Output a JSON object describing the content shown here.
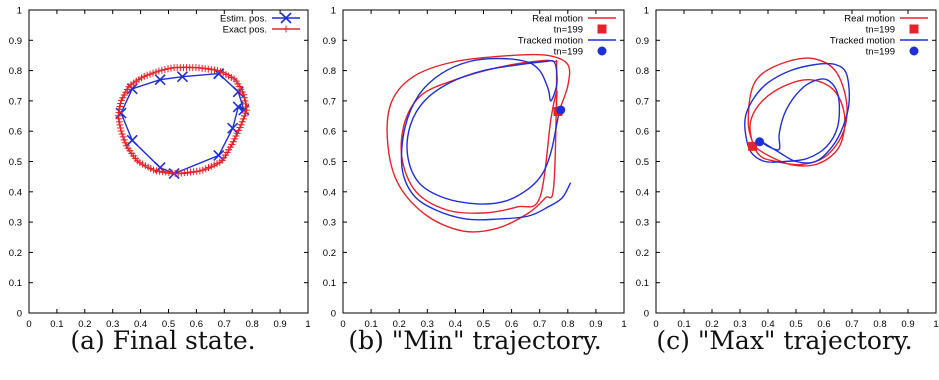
{
  "colors": {
    "red": "#e8222a",
    "blue": "#1f2fd6"
  },
  "chart_data": [
    {
      "type": "line",
      "caption": "(a) Final state.",
      "xlim": [
        0,
        1
      ],
      "ylim": [
        0,
        1
      ],
      "xticks": [
        "0",
        "0.1",
        "0.2",
        "0.3",
        "0.4",
        "0.5",
        "0.6",
        "0.7",
        "0.8",
        "0.9",
        "1"
      ],
      "yticks": [
        "0",
        "0.1",
        "0.2",
        "0.3",
        "0.4",
        "0.5",
        "0.6",
        "0.7",
        "0.8",
        "0.9",
        "1"
      ],
      "grid": false,
      "legend": "top-right",
      "series": [
        {
          "name": "Estim. pos.",
          "color": "blue",
          "marker": "x",
          "x": [
            0.68,
            0.75,
            0.77,
            0.75,
            0.73,
            0.68,
            0.52,
            0.47,
            0.37,
            0.33,
            0.37,
            0.47,
            0.55,
            0.68
          ],
          "y": [
            0.79,
            0.73,
            0.67,
            0.68,
            0.61,
            0.52,
            0.46,
            0.48,
            0.57,
            0.66,
            0.74,
            0.77,
            0.78,
            0.79
          ]
        },
        {
          "name": "Exact pos.",
          "color": "red",
          "marker": "+",
          "closed": true,
          "x": [
            0.52,
            0.6,
            0.68,
            0.74,
            0.77,
            0.78,
            0.76,
            0.73,
            0.69,
            0.62,
            0.53,
            0.45,
            0.39,
            0.35,
            0.33,
            0.32,
            0.33,
            0.36,
            0.41,
            0.47
          ],
          "y": [
            0.81,
            0.81,
            0.8,
            0.77,
            0.72,
            0.67,
            0.62,
            0.56,
            0.5,
            0.47,
            0.46,
            0.47,
            0.5,
            0.55,
            0.6,
            0.65,
            0.7,
            0.75,
            0.78,
            0.8
          ]
        }
      ]
    },
    {
      "type": "line",
      "caption": "(b) \"Min\" trajectory.",
      "xlim": [
        0,
        1
      ],
      "ylim": [
        0,
        1
      ],
      "xticks": [
        "0",
        "0.1",
        "0.2",
        "0.3",
        "0.4",
        "0.5",
        "0.6",
        "0.7",
        "0.8",
        "0.9",
        "1"
      ],
      "yticks": [
        "0",
        "0.1",
        "0.2",
        "0.3",
        "0.4",
        "0.5",
        "0.6",
        "0.7",
        "0.8",
        "0.9",
        "1"
      ],
      "grid": false,
      "legend": "top-right",
      "series": [
        {
          "name": "Real motion",
          "color": "red",
          "x": [
            0.77,
            0.8,
            0.8,
            0.73,
            0.6,
            0.4,
            0.25,
            0.17,
            0.16,
            0.2,
            0.3,
            0.43,
            0.55,
            0.66,
            0.72,
            0.75,
            0.76,
            0.75,
            0.68,
            0.55,
            0.4,
            0.28,
            0.22,
            0.21,
            0.26,
            0.37,
            0.5,
            0.62,
            0.7,
            0.74,
            0.76,
            0.76,
            0.76
          ],
          "y": [
            0.67,
            0.75,
            0.82,
            0.85,
            0.85,
            0.83,
            0.78,
            0.69,
            0.55,
            0.42,
            0.32,
            0.27,
            0.28,
            0.33,
            0.38,
            0.42,
            0.79,
            0.83,
            0.83,
            0.81,
            0.77,
            0.72,
            0.63,
            0.51,
            0.4,
            0.34,
            0.33,
            0.35,
            0.38,
            0.64,
            0.73,
            0.7,
            0.67
          ]
        },
        {
          "name": "Tracked motion",
          "color": "blue",
          "x": [
            0.81,
            0.78,
            0.73,
            0.66,
            0.55,
            0.44,
            0.33,
            0.25,
            0.21,
            0.22,
            0.27,
            0.35,
            0.45,
            0.55,
            0.65,
            0.7,
            0.73,
            0.74,
            0.76,
            0.76,
            0.75,
            0.72,
            0.63,
            0.5,
            0.38,
            0.29,
            0.24,
            0.23,
            0.27,
            0.36,
            0.48,
            0.58,
            0.66,
            0.71,
            0.74,
            0.76,
            0.77
          ],
          "y": [
            0.43,
            0.38,
            0.35,
            0.32,
            0.31,
            0.31,
            0.34,
            0.39,
            0.48,
            0.61,
            0.72,
            0.79,
            0.83,
            0.84,
            0.83,
            0.8,
            0.74,
            0.7,
            0.75,
            0.8,
            0.83,
            0.83,
            0.82,
            0.8,
            0.76,
            0.7,
            0.62,
            0.52,
            0.43,
            0.38,
            0.36,
            0.37,
            0.41,
            0.46,
            0.53,
            0.62,
            0.67
          ]
        }
      ],
      "annotations": [
        {
          "name": "tn=199",
          "series": "Real motion",
          "marker": "square",
          "x": 0.765,
          "y": 0.665
        },
        {
          "name": "tn=199",
          "series": "Tracked motion",
          "marker": "circle",
          "x": 0.775,
          "y": 0.67
        }
      ]
    },
    {
      "type": "line",
      "caption": "(c) \"Max\" trajectory.",
      "xlim": [
        0,
        1
      ],
      "ylim": [
        0,
        1
      ],
      "xticks": [
        "0",
        "0.1",
        "0.2",
        "0.3",
        "0.4",
        "0.5",
        "0.6",
        "0.7",
        "0.8",
        "0.9",
        "1"
      ],
      "yticks": [
        "0",
        "0.1",
        "0.2",
        "0.3",
        "0.4",
        "0.5",
        "0.6",
        "0.7",
        "0.8",
        "0.9",
        "1"
      ],
      "grid": false,
      "legend": "top-right",
      "series": [
        {
          "name": "Real motion",
          "color": "red",
          "x": [
            0.35,
            0.4,
            0.48,
            0.57,
            0.64,
            0.67,
            0.67,
            0.63,
            0.55,
            0.46,
            0.38,
            0.34,
            0.34,
            0.37,
            0.43,
            0.52,
            0.61,
            0.67,
            0.68,
            0.64,
            0.56,
            0.47,
            0.38,
            0.34,
            0.33,
            0.35
          ],
          "y": [
            0.55,
            0.52,
            0.49,
            0.49,
            0.53,
            0.59,
            0.67,
            0.74,
            0.77,
            0.75,
            0.7,
            0.64,
            0.58,
            0.52,
            0.5,
            0.49,
            0.52,
            0.6,
            0.7,
            0.8,
            0.84,
            0.83,
            0.79,
            0.73,
            0.62,
            0.55
          ]
        },
        {
          "name": "Tracked motion",
          "color": "blue",
          "x": [
            0.37,
            0.44,
            0.5,
            0.57,
            0.63,
            0.67,
            0.69,
            0.68,
            0.64,
            0.57,
            0.48,
            0.4,
            0.35,
            0.32,
            0.32,
            0.34,
            0.39,
            0.46,
            0.54,
            0.61,
            0.65,
            0.65,
            0.61,
            0.55,
            0.5,
            0.46,
            0.44,
            0.44,
            0.4,
            0.37
          ],
          "y": [
            0.57,
            0.53,
            0.5,
            0.5,
            0.55,
            0.62,
            0.7,
            0.79,
            0.82,
            0.82,
            0.8,
            0.76,
            0.71,
            0.65,
            0.59,
            0.53,
            0.5,
            0.5,
            0.51,
            0.55,
            0.62,
            0.72,
            0.77,
            0.76,
            0.72,
            0.66,
            0.59,
            0.54,
            0.55,
            0.57
          ]
        }
      ],
      "annotations": [
        {
          "name": "tn=199",
          "series": "Real motion",
          "marker": "square",
          "x": 0.345,
          "y": 0.55
        },
        {
          "name": "tn=199",
          "series": "Tracked motion",
          "marker": "circle",
          "x": 0.37,
          "y": 0.565
        }
      ]
    }
  ]
}
